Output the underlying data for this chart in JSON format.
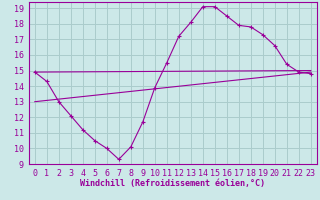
{
  "background_color": "#cce8e8",
  "grid_color": "#aacccc",
  "line_color": "#990099",
  "xlim": [
    -0.5,
    23.5
  ],
  "ylim": [
    9,
    19.4
  ],
  "xlabel": "Windchill (Refroidissement éolien,°C)",
  "xlabel_fontsize": 6.0,
  "xticks": [
    0,
    1,
    2,
    3,
    4,
    5,
    6,
    7,
    8,
    9,
    10,
    11,
    12,
    13,
    14,
    15,
    16,
    17,
    18,
    19,
    20,
    21,
    22,
    23
  ],
  "yticks": [
    9,
    10,
    11,
    12,
    13,
    14,
    15,
    16,
    17,
    18,
    19
  ],
  "tick_fontsize": 6.0,
  "series1_x": [
    0,
    1,
    2,
    3,
    4,
    5,
    6,
    7,
    8,
    9,
    10,
    11,
    12,
    13,
    14,
    15,
    16,
    17,
    18,
    19,
    20,
    21,
    22,
    23
  ],
  "series1_y": [
    14.9,
    14.3,
    13.0,
    12.1,
    11.2,
    10.5,
    10.0,
    9.3,
    10.1,
    11.7,
    13.9,
    15.5,
    17.2,
    18.1,
    19.1,
    19.1,
    18.5,
    17.9,
    17.8,
    17.3,
    16.6,
    15.4,
    14.9,
    14.8
  ],
  "series2_x": [
    0,
    23
  ],
  "series2_y": [
    14.9,
    15.0
  ],
  "series3_x": [
    0,
    23
  ],
  "series3_y": [
    13.0,
    14.9
  ]
}
